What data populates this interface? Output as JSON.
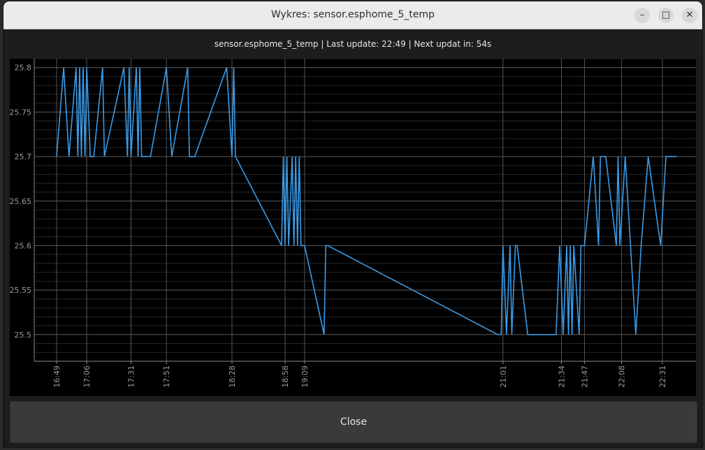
{
  "window": {
    "title": "Wykres: sensor.esphome_5_temp",
    "minimize_icon": "minimize-icon",
    "maximize_icon": "maximize-icon",
    "close_icon": "close-icon"
  },
  "header": {
    "status": "sensor.esphome_5_temp | Last update: 22:49 | Next updat in: 54s"
  },
  "footer": {
    "close_label": "Close"
  },
  "colors": {
    "line": "#3a9be8",
    "grid_major": "#555555",
    "grid_minor": "#262626",
    "axis": "#8a8a8a"
  },
  "chart_data": {
    "type": "line",
    "title": "",
    "xlabel": "",
    "ylabel": "",
    "ylim": [
      25.47,
      25.81
    ],
    "y_ticks": [
      "25.5",
      "25.55",
      "25.6",
      "25.65",
      "25.7",
      "25.75",
      "25.8"
    ],
    "x_axis_unit": "time (HH:MM)",
    "x_tick_labels": [
      "16:49",
      "17:06",
      "17:31",
      "17:51",
      "18:28",
      "18:58",
      "19:09",
      "21:01",
      "21:34",
      "21:47",
      "22:08",
      "22:31"
    ],
    "grid": true,
    "series": [
      {
        "x": [
          "16:49",
          "16:53",
          "16:56",
          "17:00",
          "17:01",
          "17:02",
          "17:03",
          "17:04",
          "17:05",
          "17:06",
          "17:08",
          "17:08",
          "17:10",
          "17:15",
          "17:16",
          "17:27",
          "17:29",
          "17:30",
          "17:31",
          "17:34",
          "17:35",
          "17:36",
          "17:37",
          "17:42",
          "17:51",
          "17:54",
          "18:03",
          "18:04",
          "18:05",
          "18:07",
          "18:25",
          "18:28",
          "18:29",
          "18:30",
          "18:56",
          "18:57",
          "18:58",
          "18:59",
          "19:00",
          "19:02",
          "19:03",
          "19:04",
          "19:05",
          "19:06",
          "19:07",
          "19:09",
          "19:20",
          "19:21",
          "19:22",
          "20:58",
          "21:00",
          "21:01",
          "21:03",
          "21:05",
          "21:06",
          "21:08",
          "21:09",
          "21:15",
          "21:31",
          "21:33",
          "21:35",
          "21:37",
          "21:38",
          "21:39",
          "21:40",
          "21:41",
          "21:44",
          "21:45",
          "21:47",
          "21:52",
          "21:55",
          "21:56",
          "21:59",
          "22:05",
          "22:06",
          "22:07",
          "22:10",
          "22:13",
          "22:16",
          "22:19",
          "22:23",
          "22:30",
          "22:33",
          "22:39"
        ],
        "y": [
          25.7,
          25.8,
          25.7,
          25.8,
          25.7,
          25.8,
          25.7,
          25.8,
          25.7,
          25.8,
          25.7,
          25.7,
          25.7,
          25.8,
          25.7,
          25.8,
          25.7,
          25.8,
          25.7,
          25.8,
          25.7,
          25.8,
          25.7,
          25.7,
          25.8,
          25.7,
          25.8,
          25.7,
          25.7,
          25.7,
          25.8,
          25.7,
          25.8,
          25.7,
          25.6,
          25.7,
          25.6,
          25.7,
          25.6,
          25.7,
          25.6,
          25.7,
          25.6,
          25.7,
          25.6,
          25.6,
          25.5,
          25.6,
          25.6,
          25.5,
          25.5,
          25.6,
          25.5,
          25.6,
          25.5,
          25.6,
          25.6,
          25.5,
          25.5,
          25.6,
          25.5,
          25.6,
          25.5,
          25.6,
          25.5,
          25.6,
          25.5,
          25.6,
          25.6,
          25.7,
          25.6,
          25.7,
          25.7,
          25.6,
          25.7,
          25.6,
          25.7,
          25.6,
          25.5,
          25.6,
          25.7,
          25.6,
          25.7,
          25.7
        ]
      }
    ]
  }
}
